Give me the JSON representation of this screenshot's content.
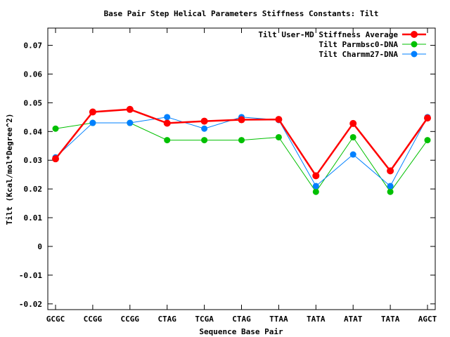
{
  "chart_data": {
    "type": "line",
    "title": "Base Pair Step Helical Parameters Stiffness Constants: Tilt",
    "xlabel": "Sequence Base Pair",
    "ylabel": "Tilt (Kcal/mol*Degree^2)",
    "categories": [
      "GCGC",
      "CCGG",
      "CCGG",
      "CTAG",
      "TCGA",
      "CTAG",
      "TTAA",
      "TATA",
      "ATAT",
      "TATA",
      "AGCT"
    ],
    "ylim": [
      -0.022,
      0.076
    ],
    "yticks": [
      "0.07",
      "0.06",
      "0.05",
      "0.04",
      "0.03",
      "0.02",
      "0.01",
      "0",
      "-0.01",
      "-0.02"
    ],
    "ytick_values": [
      0.07,
      0.06,
      0.05,
      0.04,
      0.03,
      0.02,
      0.01,
      0,
      -0.01,
      -0.02
    ],
    "grid": false,
    "legend_position": "top-right",
    "series": [
      {
        "name": "Tilt User-MD Stiffness Average",
        "color": "#ff0000",
        "values": [
          0.0305,
          0.0468,
          0.0477,
          0.0429,
          0.0436,
          0.0441,
          0.0442,
          0.0246,
          0.0428,
          0.0263,
          0.0447
        ]
      },
      {
        "name": "Tilt Parmbsc0-DNA",
        "color": "#00c000",
        "values": [
          0.041,
          0.043,
          0.043,
          0.037,
          0.037,
          0.037,
          0.038,
          0.019,
          0.038,
          0.019,
          0.037
        ]
      },
      {
        "name": "Tilt Charmm27-DNA",
        "color": "#0080ff",
        "values": [
          0.031,
          0.043,
          0.043,
          0.045,
          0.041,
          0.045,
          0.044,
          0.021,
          0.032,
          0.021,
          0.045
        ]
      }
    ]
  }
}
